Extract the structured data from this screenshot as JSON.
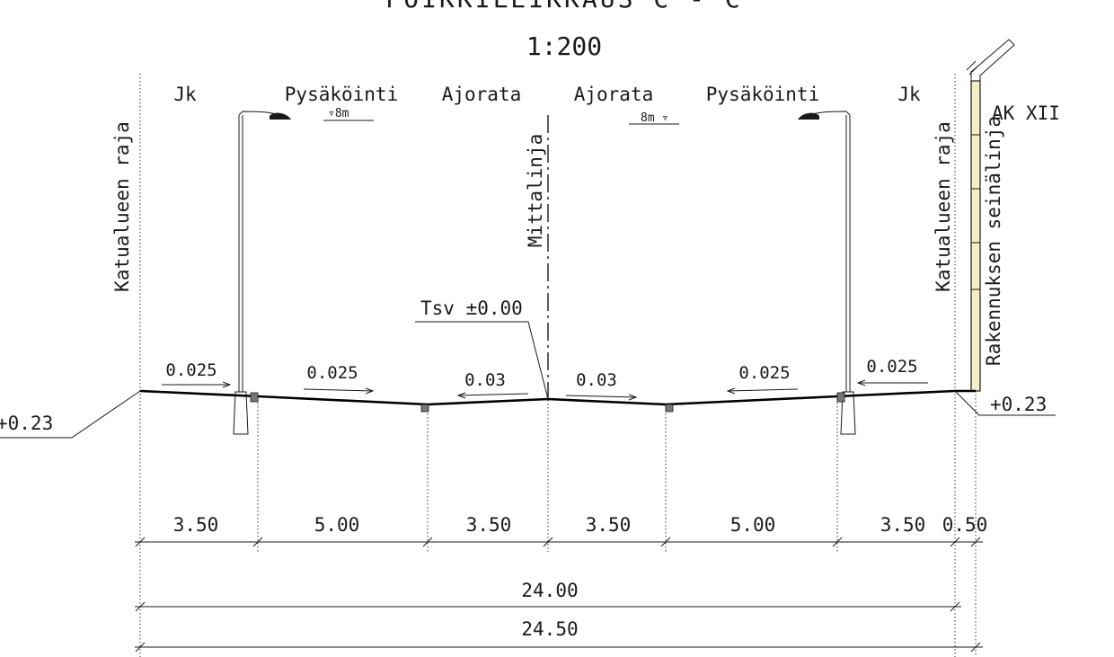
{
  "title": "POIKKILEIKKAUS C - C",
  "scale": "1:200",
  "top_labels": {
    "jk_left": "Jk",
    "parking_left": "Pysäköinti",
    "road_left": "Ajorata",
    "road_right": "Ajorata",
    "parking_right": "Pysäköinti",
    "jk_right": "Jk",
    "zone": "AK XII"
  },
  "parking_notes": {
    "left": "▿8m",
    "right": "8m ▿"
  },
  "vertical_labels": {
    "boundary_left": "Katualueen raja",
    "boundary_right": "Katualueen raja",
    "centerline": "Mittalinja",
    "building_line": "Rakennuksen seinälinja"
  },
  "elevations": {
    "design_level": "Tsv ±0.00",
    "left": "+0.23",
    "right": "+0.23"
  },
  "slopes": [
    "0.025",
    "0.025",
    "0.03",
    "0.03",
    "0.025",
    "0.025"
  ],
  "widths": [
    "3.50",
    "5.00",
    "3.50",
    "3.50",
    "5.00",
    "3.50",
    "0.50"
  ],
  "totals": {
    "street_area": "24.00",
    "overall": "24.50"
  }
}
